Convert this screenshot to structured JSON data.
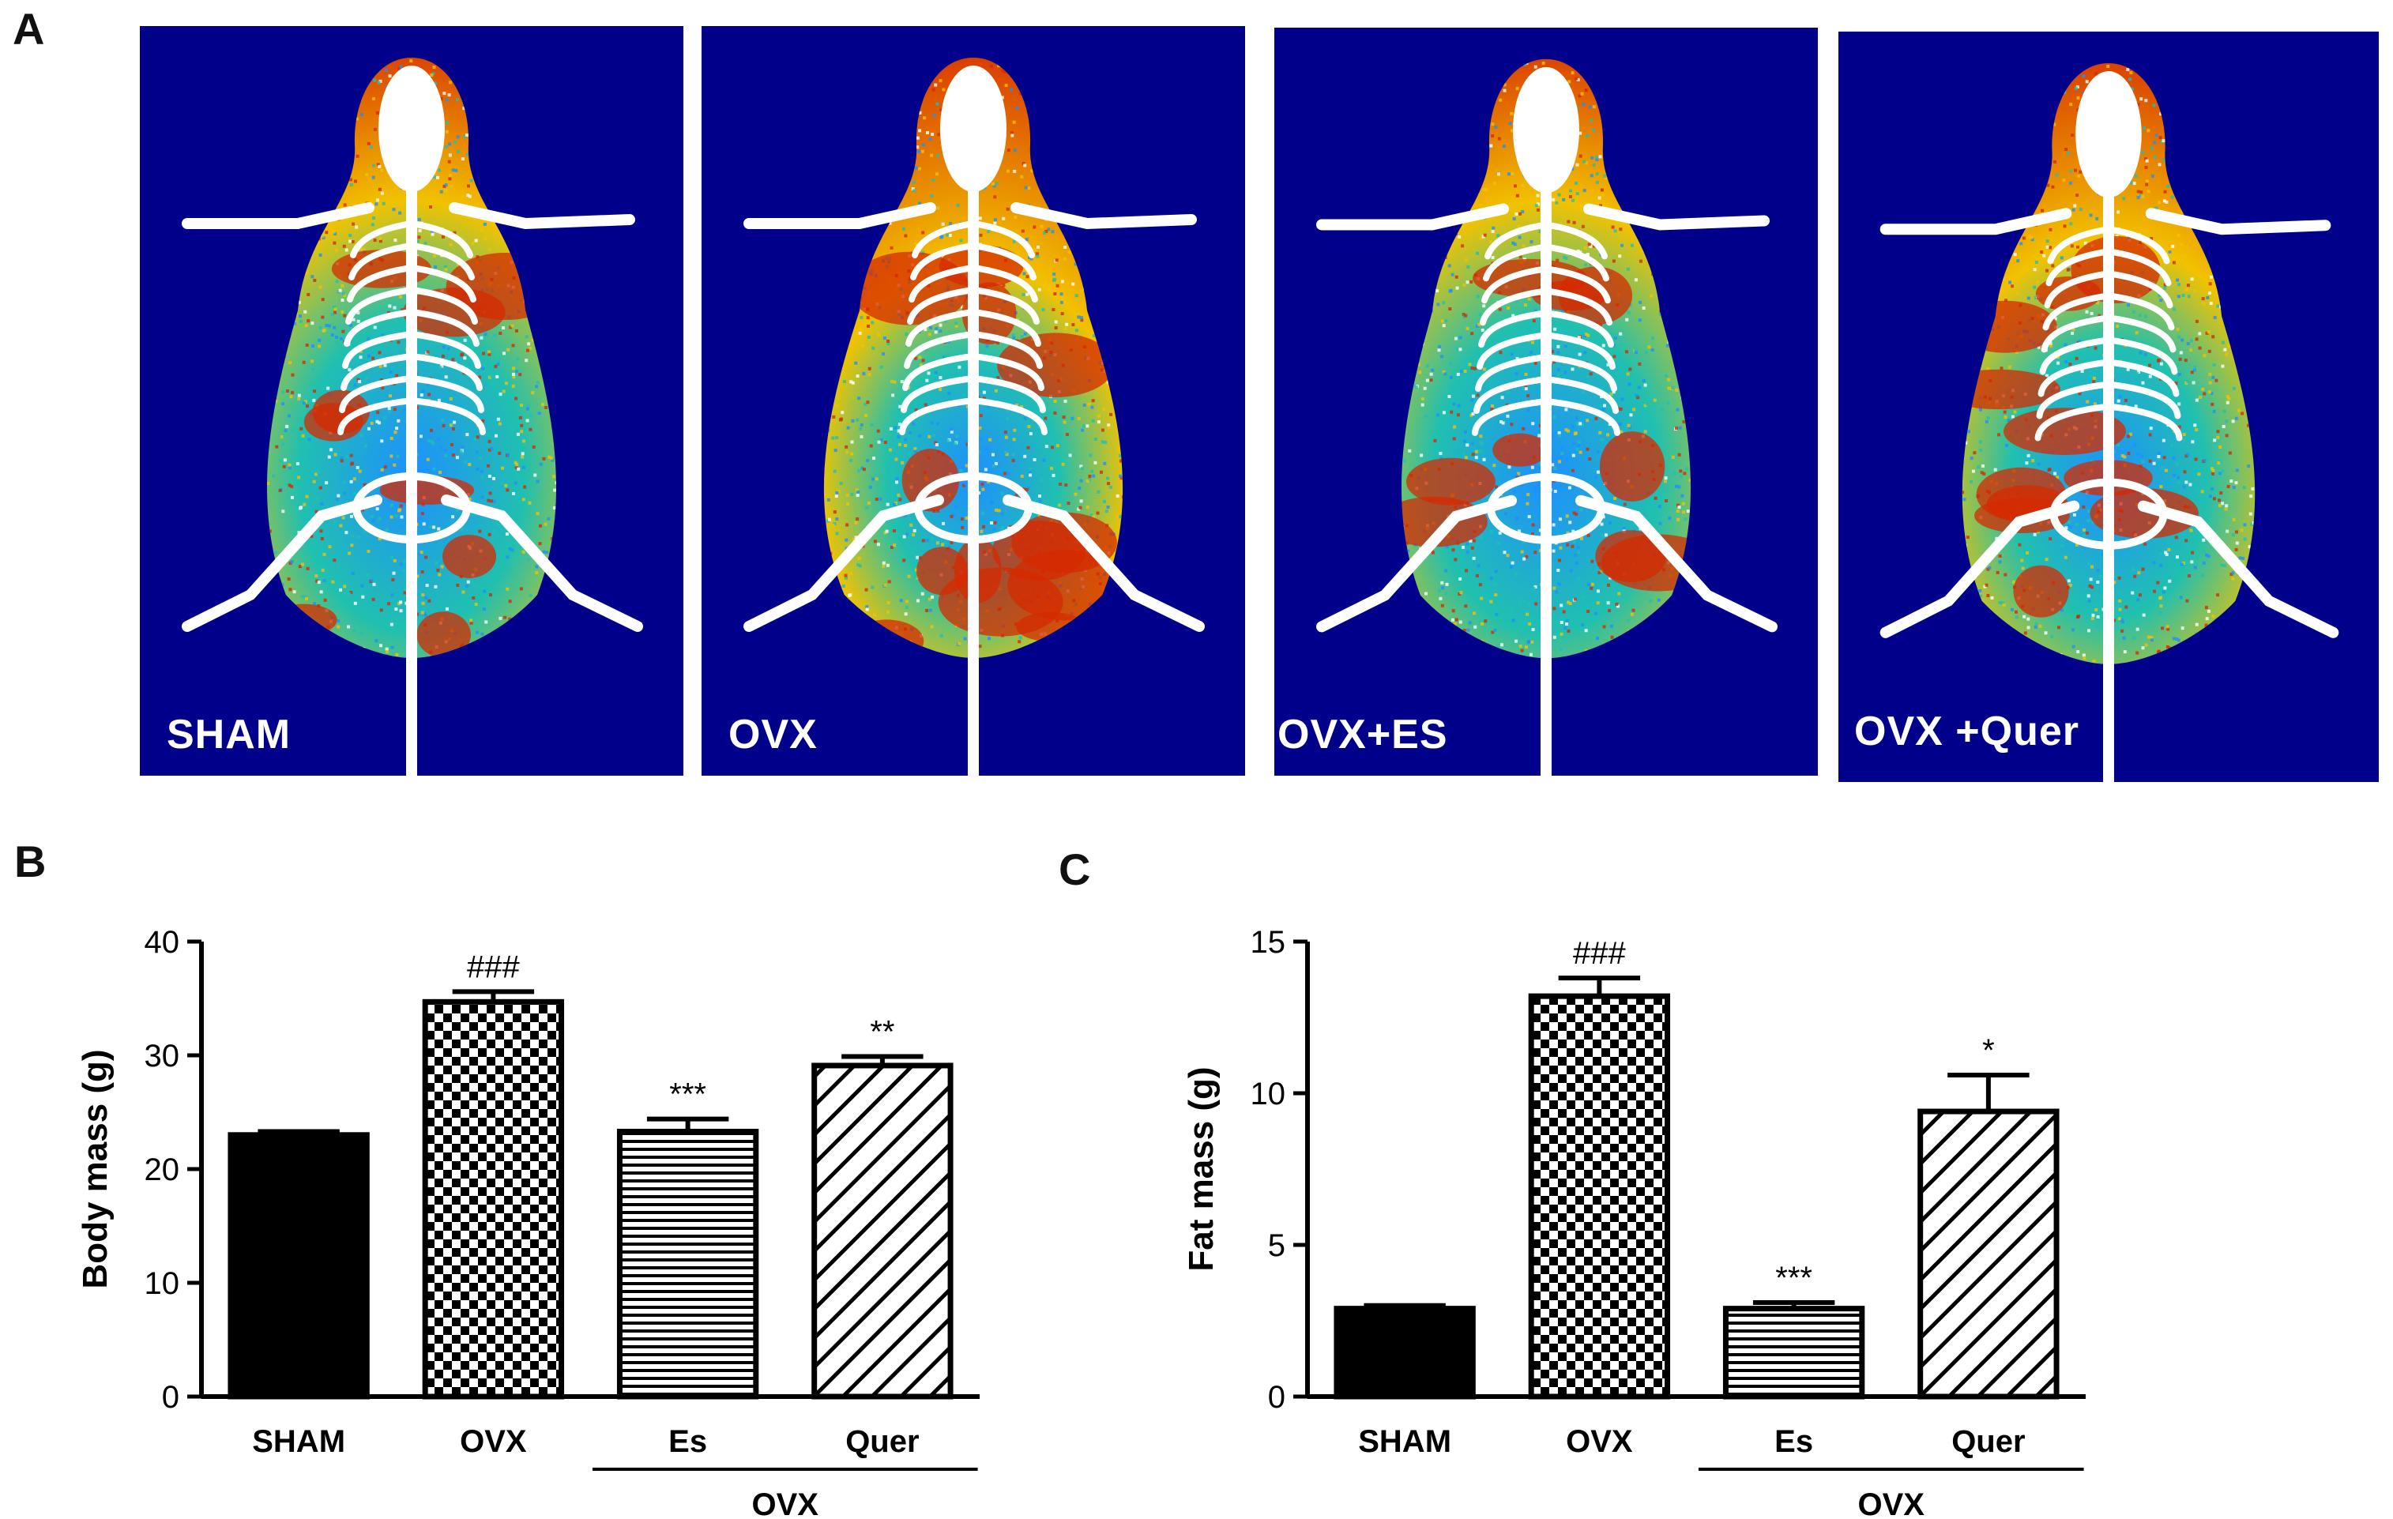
{
  "panel_a": {
    "letter": "A",
    "scans": [
      {
        "label": "SHAM",
        "fat_level": 0.35
      },
      {
        "label": "OVX",
        "fat_level": 0.9
      },
      {
        "label": "OVX+ES",
        "fat_level": 0.35
      },
      {
        "label": "OVX +Quer",
        "fat_level": 0.65
      }
    ],
    "colors": {
      "background": "#00008b",
      "skeleton": "#ffffff",
      "fat_high": "#d62a00",
      "fat_mid": "#f2c200",
      "lean": "#1e90ff",
      "lean2": "#20c0b0"
    }
  },
  "chart_data": [
    {
      "panel": "B",
      "type": "bar",
      "title": "",
      "xlabel": "",
      "ylabel": "Body mass (g)",
      "ylim": [
        0,
        40
      ],
      "yticks": [
        0,
        10,
        20,
        30,
        40
      ],
      "categories": [
        "SHAM",
        "OVX",
        "Es",
        "Quer"
      ],
      "values": [
        23.0,
        34.7,
        23.3,
        29.1
      ],
      "errors": [
        0.3,
        0.9,
        1.1,
        0.8
      ],
      "patterns": [
        "solid",
        "checker",
        "horizontal",
        "diagonal"
      ],
      "annotations": [
        "",
        "###",
        "***",
        "**"
      ],
      "group_label": "OVX",
      "group_indices": [
        2,
        3
      ]
    },
    {
      "panel": "C",
      "type": "bar",
      "title": "",
      "xlabel": "",
      "ylabel": "Fat mass (g)",
      "ylim": [
        0,
        15
      ],
      "yticks": [
        0,
        5,
        10,
        15
      ],
      "categories": [
        "SHAM",
        "OVX",
        "Es",
        "Quer"
      ],
      "values": [
        2.9,
        13.2,
        2.9,
        9.4
      ],
      "errors": [
        0.1,
        0.6,
        0.2,
        1.2
      ],
      "patterns": [
        "solid",
        "checker",
        "horizontal",
        "diagonal"
      ],
      "annotations": [
        "",
        "###",
        "***",
        "*"
      ],
      "group_label": "OVX",
      "group_indices": [
        2,
        3
      ]
    }
  ]
}
